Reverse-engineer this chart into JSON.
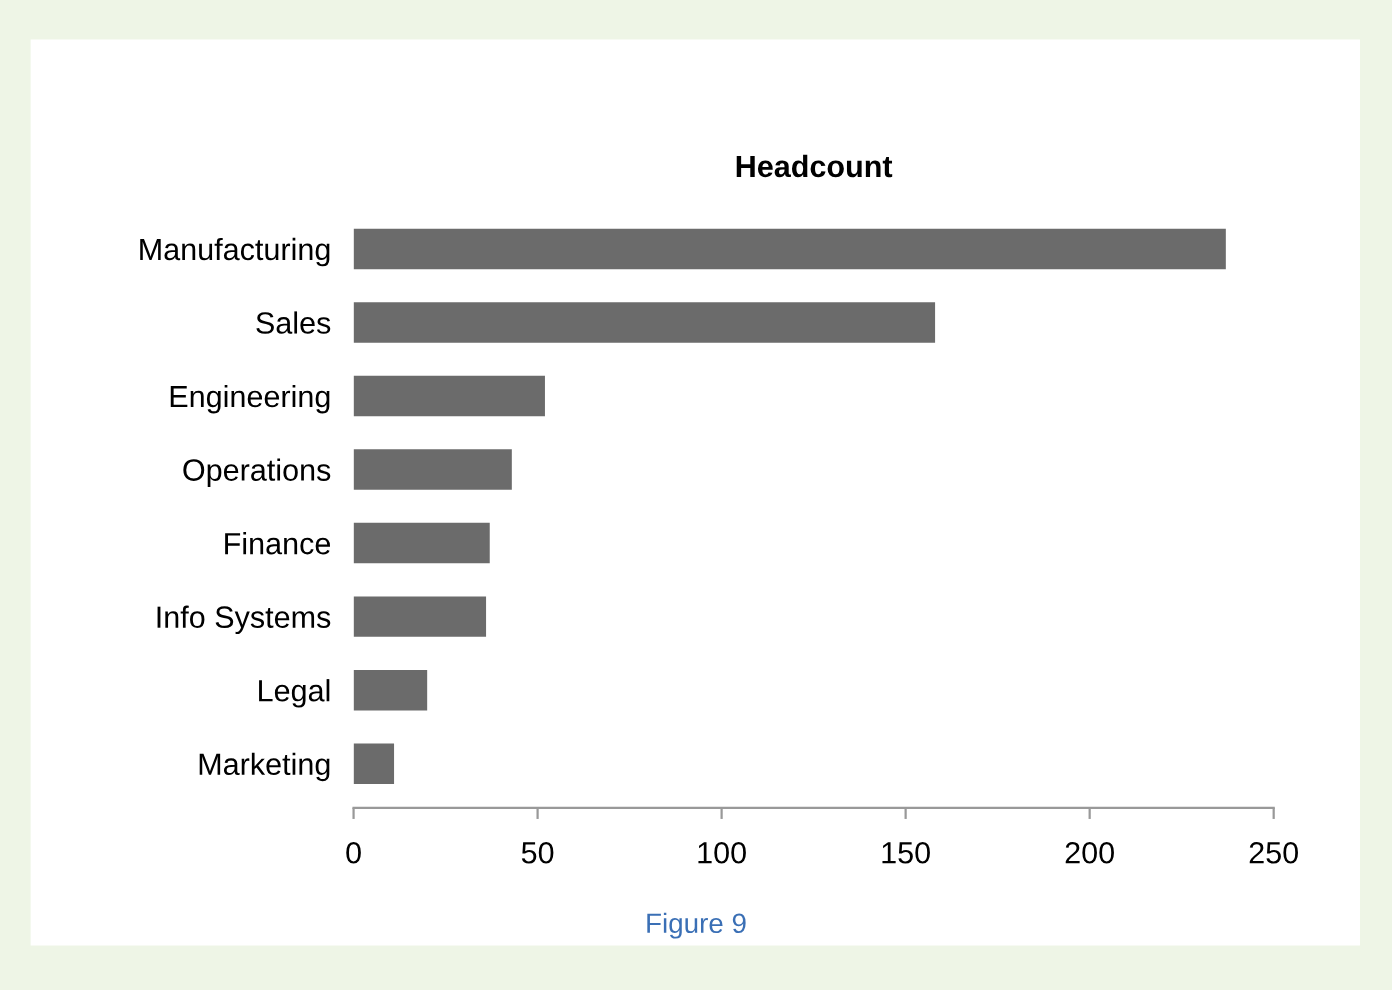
{
  "chart_data": {
    "type": "bar",
    "orientation": "horizontal",
    "title": "Headcount",
    "categories": [
      "Manufacturing",
      "Sales",
      "Engineering",
      "Operations",
      "Finance",
      "Info Systems",
      "Legal",
      "Marketing"
    ],
    "values": [
      237,
      158,
      52,
      43,
      37,
      36,
      20,
      11
    ],
    "color": "#6b6b6b",
    "xlim": [
      0,
      250
    ],
    "xticks": [
      0,
      50,
      100,
      150,
      200,
      250
    ],
    "annotations": [
      "Figure 9"
    ]
  }
}
